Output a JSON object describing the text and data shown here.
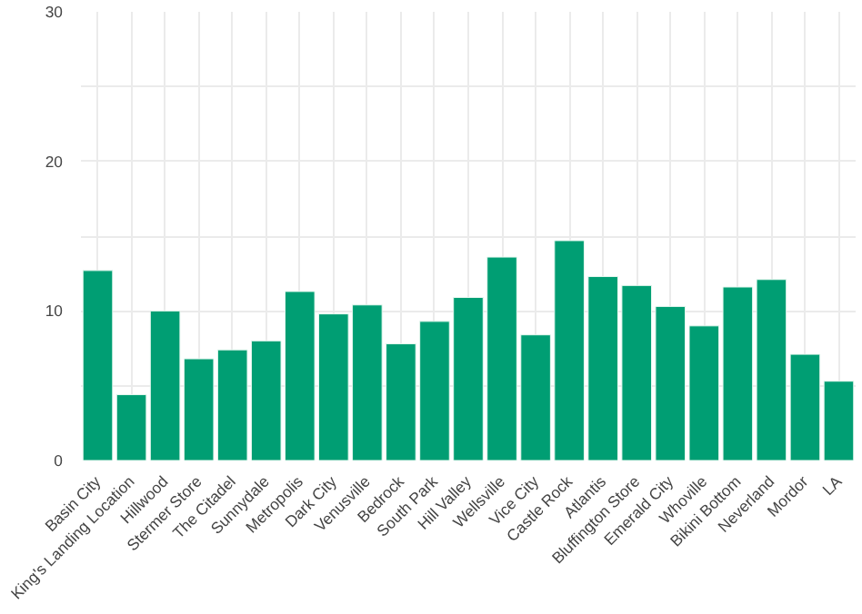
{
  "chart_data": {
    "type": "bar",
    "categories": [
      "Basin City",
      "King's Landing Location",
      "Hillwood",
      "Stermer Store",
      "The Citadel",
      "Sunnydale",
      "Metropolis",
      "Dark City",
      "Venusville",
      "Bedrock",
      "South Park",
      "Hill Valley",
      "Wellsville",
      "Vice City",
      "Castle Rock",
      "Atlantis",
      "Bluffington Store",
      "Emerald City",
      "Whoville",
      "Bikini Bottom",
      "Neverland",
      "Mordor",
      "LA"
    ],
    "values": [
      12.7,
      4.4,
      10.0,
      6.8,
      7.4,
      8.0,
      11.3,
      9.8,
      10.4,
      7.8,
      9.3,
      10.9,
      13.6,
      8.4,
      14.7,
      12.3,
      11.7,
      10.3,
      9.0,
      11.6,
      12.1,
      7.1,
      5.3
    ],
    "color": "#009e73",
    "ylim": [
      0,
      30
    ],
    "yticks": [
      0,
      {
        "value": 5,
        "label": null
      },
      10,
      {
        "value": 15,
        "label": null
      },
      20,
      {
        "value": 25,
        "label": null
      },
      30
    ],
    "grid": true
  }
}
